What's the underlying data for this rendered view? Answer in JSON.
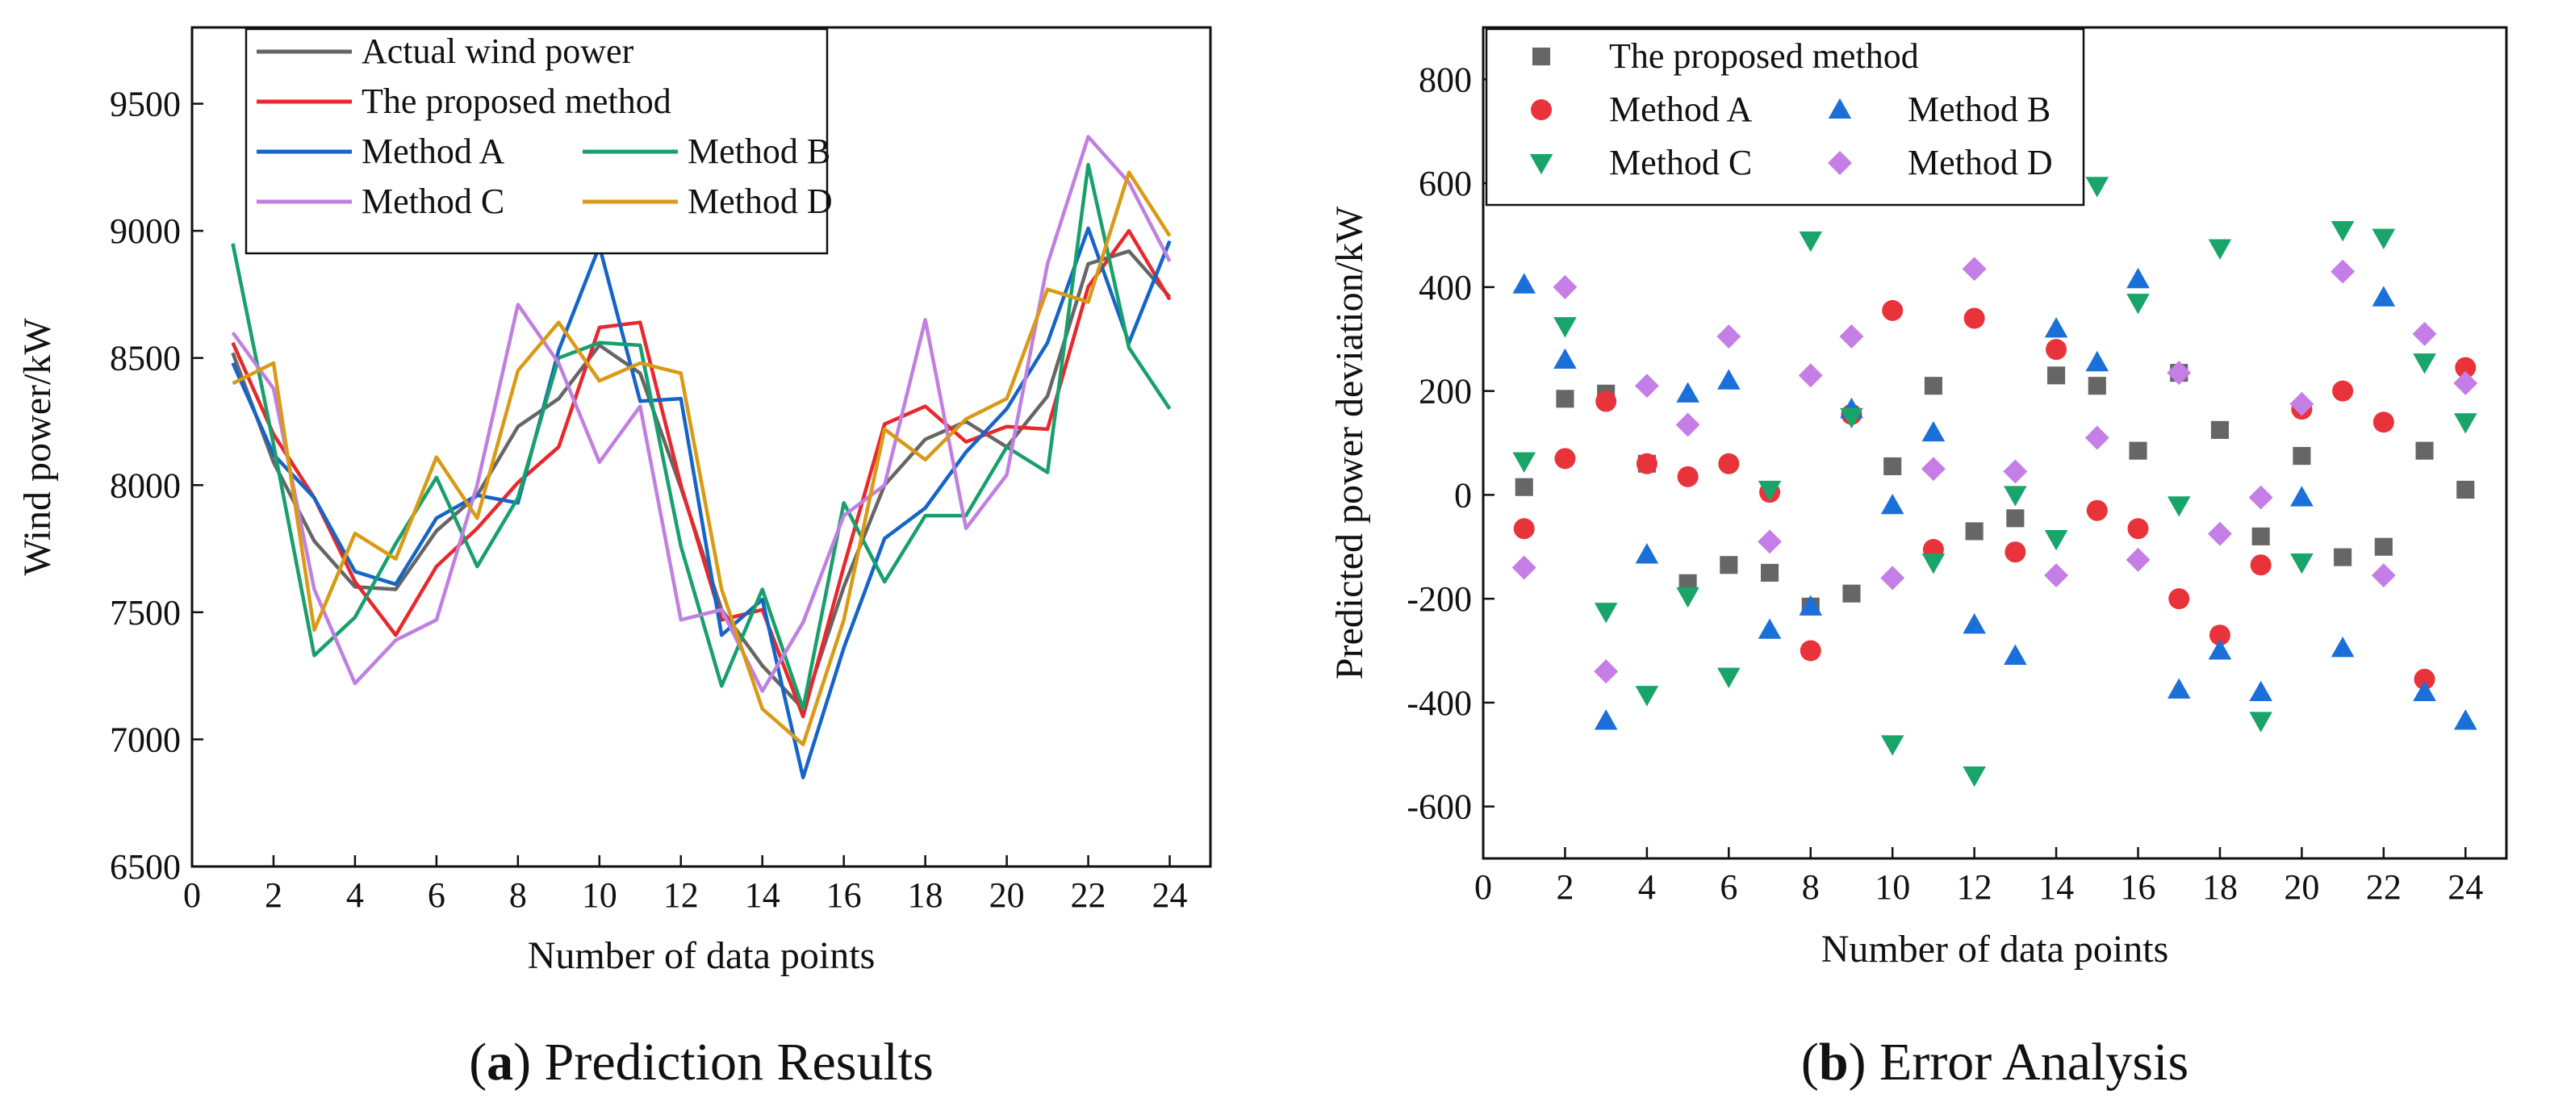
{
  "chart_data": [
    {
      "type": "line",
      "panel_letter": "a",
      "caption_title": "Prediction Results",
      "xlabel": "Number of data points",
      "ylabel": "Wind power/kW",
      "xlim": [
        0,
        25
      ],
      "ylim": [
        6500,
        9800
      ],
      "xticks": [
        0,
        2,
        4,
        6,
        8,
        10,
        12,
        14,
        16,
        18,
        20,
        22,
        24
      ],
      "yticks": [
        6500,
        7000,
        7500,
        8000,
        8500,
        9000,
        9500
      ],
      "legend_position": "top-left",
      "x": [
        1,
        2,
        3,
        4,
        5,
        6,
        7,
        8,
        9,
        10,
        11,
        12,
        13,
        14,
        15,
        16,
        17,
        18,
        19,
        20,
        21,
        22,
        23,
        24
      ],
      "series": [
        {
          "name": "Actual wind power",
          "color": "#666666",
          "values": [
            8520,
            8090,
            7780,
            7600,
            7590,
            7820,
            7960,
            8230,
            8340,
            8550,
            8440,
            7990,
            7510,
            7290,
            7120,
            7600,
            8000,
            8180,
            8250,
            8150,
            8350,
            8870,
            8920,
            8740
          ]
        },
        {
          "name": "The proposed method",
          "color": "#e8282c",
          "values": [
            8560,
            8200,
            7950,
            7620,
            7410,
            7680,
            7830,
            8010,
            8150,
            8620,
            8640,
            8000,
            7470,
            7510,
            7090,
            7680,
            8240,
            8310,
            8170,
            8230,
            8220,
            8780,
            9000,
            8730
          ]
        },
        {
          "name": "Method A",
          "color": "#1565c8",
          "values": [
            8480,
            8120,
            7950,
            7660,
            7610,
            7870,
            7960,
            7930,
            8530,
            8940,
            8330,
            8340,
            7410,
            7550,
            6850,
            7360,
            7790,
            7910,
            8130,
            8300,
            8560,
            9010,
            8560,
            8960
          ]
        },
        {
          "name": "Method B",
          "color": "#17a06b",
          "values": [
            8950,
            8160,
            7330,
            7480,
            7770,
            8030,
            7680,
            7950,
            8500,
            8560,
            8550,
            7760,
            7210,
            7590,
            7120,
            7930,
            7620,
            7880,
            7880,
            8150,
            8050,
            9260,
            8540,
            8300
          ]
        },
        {
          "name": "Method C",
          "color": "#c080e0",
          "values": [
            8600,
            8380,
            7590,
            7220,
            7390,
            7470,
            8000,
            8710,
            8480,
            8090,
            8310,
            7470,
            7510,
            7190,
            7460,
            7880,
            8000,
            8650,
            7830,
            8040,
            8870,
            9370,
            9190,
            8880
          ]
        },
        {
          "name": "Method D",
          "color": "#d99a15",
          "values": [
            8400,
            8480,
            7430,
            7810,
            7710,
            8110,
            7870,
            8450,
            8640,
            8410,
            8480,
            8440,
            7590,
            7120,
            6980,
            7470,
            8220,
            8100,
            8260,
            8340,
            8770,
            8720,
            9230,
            8980
          ]
        }
      ]
    },
    {
      "type": "scatter",
      "panel_letter": "b",
      "caption_title": "Error Analysis",
      "xlabel": "Number of data points",
      "ylabel": "Predicted power deviation/kW",
      "xlim": [
        0,
        25
      ],
      "ylim": [
        -700,
        900
      ],
      "xticks": [
        0,
        2,
        4,
        6,
        8,
        10,
        12,
        14,
        16,
        18,
        20,
        22,
        24
      ],
      "yticks": [
        -600,
        -400,
        -200,
        0,
        200,
        400,
        600,
        800
      ],
      "legend_position": "top-left",
      "x": [
        1,
        2,
        3,
        4,
        5,
        6,
        7,
        8,
        9,
        10,
        11,
        12,
        13,
        14,
        15,
        16,
        17,
        18,
        19,
        20,
        21,
        22,
        23,
        24
      ],
      "series": [
        {
          "name": "The proposed method",
          "marker": "square",
          "color": "#666666",
          "values": [
            15,
            185,
            195,
            60,
            -170,
            -135,
            -150,
            -215,
            -190,
            55,
            210,
            -70,
            -45,
            230,
            210,
            85,
            235,
            125,
            -80,
            75,
            -120,
            -100,
            85,
            10
          ]
        },
        {
          "name": "Method A",
          "marker": "circle",
          "color": "#e8333a",
          "values": [
            -65,
            70,
            180,
            60,
            35,
            60,
            5,
            -300,
            155,
            355,
            -105,
            340,
            -110,
            280,
            -30,
            -65,
            -200,
            -270,
            -135,
            165,
            200,
            140,
            -355,
            245
          ]
        },
        {
          "name": "Method B",
          "marker": "triangle-up",
          "color": "#1a70d8",
          "values": [
            405,
            260,
            -435,
            -115,
            195,
            220,
            -260,
            -215,
            165,
            -20,
            120,
            -250,
            -310,
            320,
            255,
            415,
            -375,
            -300,
            -380,
            -5,
            -295,
            380,
            -380,
            -435
          ]
        },
        {
          "name": "Method C",
          "marker": "triangle-down",
          "color": "#19a56a",
          "values": [
            65,
            325,
            -225,
            -385,
            -195,
            -350,
            10,
            490,
            150,
            -480,
            -130,
            -540,
            0,
            -85,
            595,
            370,
            -20,
            475,
            -435,
            -130,
            510,
            495,
            255,
            140
          ]
        },
        {
          "name": "Method D",
          "marker": "diamond",
          "color": "#c47ee6",
          "values": [
            -140,
            400,
            -340,
            210,
            135,
            305,
            -90,
            230,
            305,
            -160,
            50,
            435,
            45,
            -155,
            110,
            -125,
            235,
            -75,
            -5,
            175,
            430,
            -155,
            310,
            215
          ]
        }
      ]
    }
  ]
}
